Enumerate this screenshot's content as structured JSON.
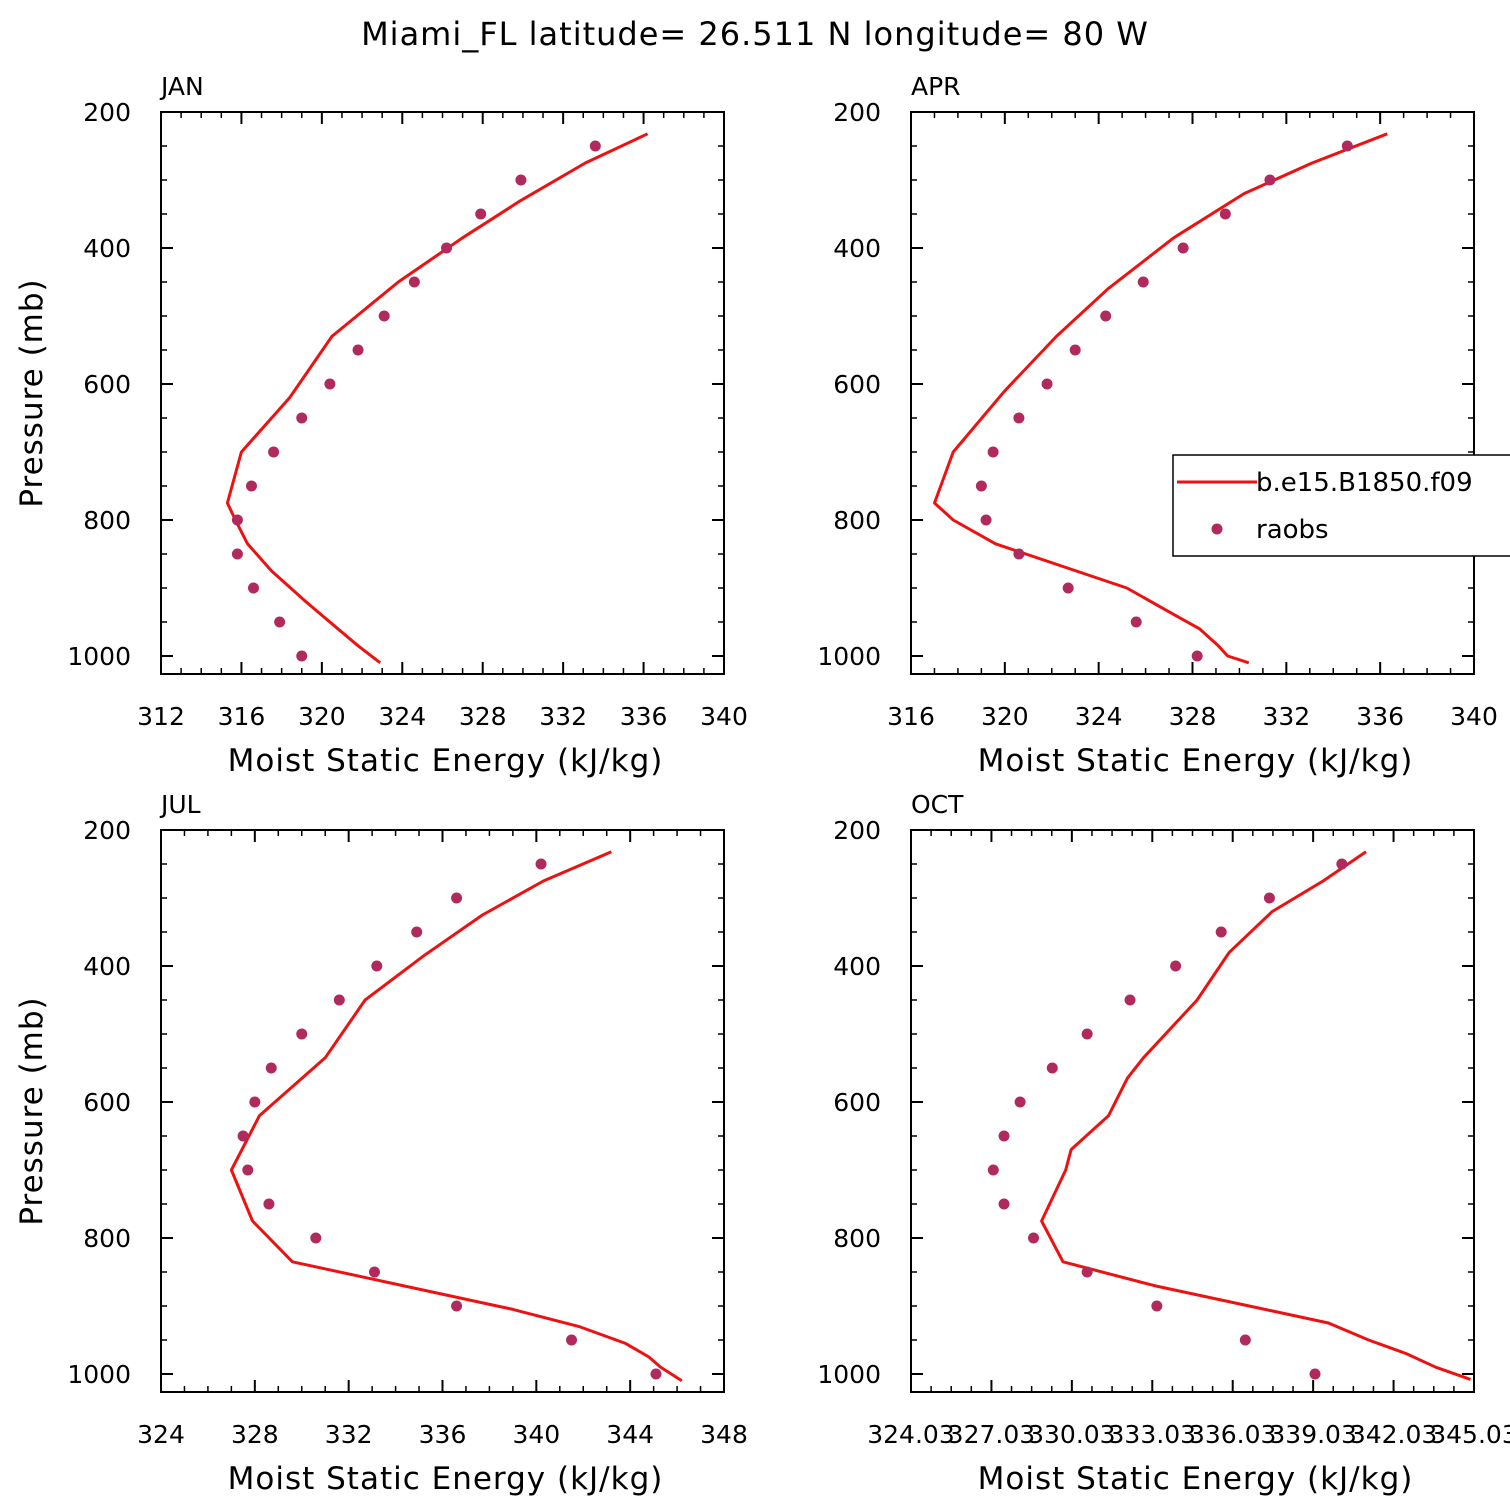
{
  "title": "Miami_FL  latitude= 26.511 N longitude= 80 W",
  "colors": {
    "model": "#ee1111",
    "raobs": "#b02a5e"
  },
  "legend": {
    "model_label": "b.e15.B1850.f09",
    "obs_label": "raobs",
    "placement": "right of APR panel"
  },
  "chart_data": [
    {
      "type": "line",
      "panel": "JAN",
      "xlabel": "Moist Static Energy (kJ/kg)",
      "ylabel": "Pressure (mb)",
      "xlim": [
        312,
        340
      ],
      "ylim": [
        1000,
        200
      ],
      "xticks": [
        "312",
        "316",
        "320",
        "324",
        "328",
        "332",
        "336",
        "340"
      ],
      "yticks": [
        "200",
        "400",
        "600",
        "800",
        "1000"
      ],
      "series": [
        {
          "name": "b.e15.B1850.f09",
          "kind": "line",
          "x": [
            336.2,
            333.1,
            329.9,
            327.0,
            323.8,
            320.5,
            318.4,
            316.0,
            315.3,
            315.7,
            316.3,
            317.5,
            319.2,
            320.8,
            321.8,
            322.9
          ],
          "y": [
            232,
            275,
            330,
            385,
            450,
            530,
            620,
            700,
            775,
            800,
            835,
            875,
            920,
            960,
            985,
            1010
          ]
        },
        {
          "name": "raobs",
          "kind": "scatter",
          "x": [
            333.6,
            329.9,
            327.9,
            326.2,
            324.6,
            323.1,
            321.8,
            320.4,
            319.0,
            317.6,
            316.5,
            315.8,
            315.8,
            316.6,
            317.9,
            319.0
          ],
          "y": [
            250,
            300,
            350,
            400,
            450,
            500,
            550,
            600,
            650,
            700,
            750,
            800,
            850,
            900,
            950,
            1000
          ]
        }
      ]
    },
    {
      "type": "line",
      "panel": "APR",
      "xlabel": "Moist Static Energy (kJ/kg)",
      "ylabel": "",
      "xlim": [
        316,
        340
      ],
      "ylim": [
        1000,
        200
      ],
      "xticks": [
        "316",
        "320",
        "324",
        "328",
        "332",
        "336",
        "340"
      ],
      "yticks": [
        "200",
        "400",
        "600",
        "800",
        "1000"
      ],
      "series": [
        {
          "name": "b.e15.B1850.f09",
          "kind": "line",
          "x": [
            336.3,
            333.1,
            330.2,
            327.2,
            324.4,
            322.2,
            320.0,
            317.8,
            317.0,
            317.8,
            319.6,
            325.2,
            327.0,
            328.3,
            329.1,
            329.5,
            330.4
          ],
          "y": [
            232,
            275,
            320,
            385,
            460,
            530,
            610,
            700,
            775,
            800,
            835,
            900,
            935,
            960,
            985,
            1000,
            1010
          ]
        },
        {
          "name": "raobs",
          "kind": "scatter",
          "x": [
            334.6,
            331.3,
            329.4,
            327.6,
            325.9,
            324.3,
            323.0,
            321.8,
            320.6,
            319.5,
            319.0,
            319.2,
            320.6,
            322.7,
            325.6,
            328.2
          ],
          "y": [
            250,
            300,
            350,
            400,
            450,
            500,
            550,
            600,
            650,
            700,
            750,
            800,
            850,
            900,
            950,
            1000
          ]
        }
      ]
    },
    {
      "type": "line",
      "panel": "JUL",
      "xlabel": "Moist Static Energy (kJ/kg)",
      "ylabel": "Pressure (mb)",
      "xlim": [
        324,
        348
      ],
      "ylim": [
        1000,
        200
      ],
      "xticks": [
        "324",
        "328",
        "332",
        "336",
        "340",
        "344",
        "348"
      ],
      "yticks": [
        "200",
        "400",
        "600",
        "800",
        "1000"
      ],
      "series": [
        {
          "name": "b.e15.B1850.f09",
          "kind": "line",
          "x": [
            343.2,
            340.3,
            337.7,
            335.2,
            332.7,
            331.0,
            328.2,
            327.0,
            327.9,
            329.6,
            339.0,
            341.8,
            343.8,
            344.8,
            345.3,
            346.2
          ],
          "y": [
            232,
            275,
            325,
            385,
            450,
            535,
            620,
            700,
            775,
            835,
            905,
            930,
            955,
            975,
            990,
            1010
          ]
        },
        {
          "name": "raobs",
          "kind": "scatter",
          "x": [
            340.2,
            336.6,
            334.9,
            333.2,
            331.6,
            330.0,
            328.7,
            328.0,
            327.5,
            327.7,
            328.6,
            330.6,
            333.1,
            336.6,
            341.5,
            345.1
          ],
          "y": [
            250,
            300,
            350,
            400,
            450,
            500,
            550,
            600,
            650,
            700,
            750,
            800,
            850,
            900,
            950,
            1000
          ]
        }
      ]
    },
    {
      "type": "line",
      "panel": "OCT",
      "xlabel": "Moist Static Energy (kJ/kg)",
      "ylabel": "",
      "xlim": [
        324.03,
        345.03
      ],
      "ylim": [
        1000,
        200
      ],
      "xticks": [
        "324.03",
        "327.03",
        "330.03",
        "333.03",
        "336.03",
        "339.03",
        "342.03",
        "345.03"
      ],
      "yticks": [
        "200",
        "400",
        "600",
        "800",
        "1000"
      ],
      "series": [
        {
          "name": "b.e15.B1850.f09",
          "kind": "line",
          "x": [
            341.0,
            339.4,
            337.5,
            335.9,
            334.7,
            332.7,
            332.1,
            331.4,
            330.0,
            329.8,
            328.9,
            329.7,
            333.1,
            339.6,
            341.1,
            342.5,
            343.6,
            344.9
          ],
          "y": [
            232,
            275,
            320,
            380,
            450,
            535,
            565,
            620,
            670,
            700,
            775,
            835,
            870,
            925,
            950,
            970,
            990,
            1008
          ]
        },
        {
          "name": "raobs",
          "kind": "scatter",
          "x": [
            340.1,
            337.4,
            335.6,
            333.9,
            332.2,
            330.6,
            329.3,
            328.1,
            327.5,
            327.1,
            327.5,
            328.6,
            330.6,
            333.2,
            336.5,
            339.1
          ],
          "y": [
            250,
            300,
            350,
            400,
            450,
            500,
            550,
            600,
            650,
            700,
            750,
            800,
            850,
            900,
            950,
            1000
          ]
        }
      ]
    }
  ]
}
